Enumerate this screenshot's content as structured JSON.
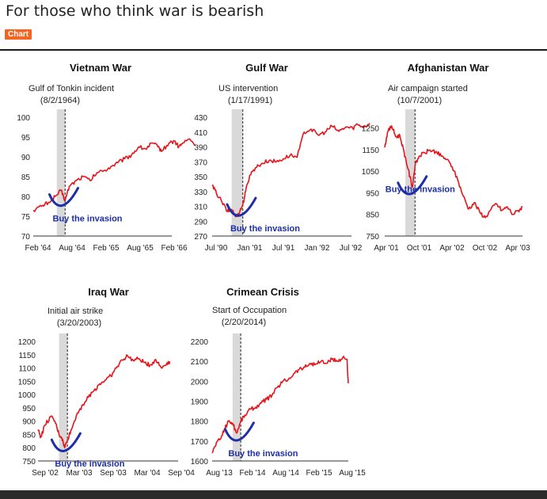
{
  "page": {
    "title": "For those who think war is bearish",
    "badge": "Chart"
  },
  "chart_data": [
    {
      "type": "line",
      "title": "Vietnam War",
      "event": "Gulf of Tonkin incident",
      "event_date": "(8/2/1964)",
      "annotation": "Buy the invasion",
      "y_ticks": [
        100,
        95,
        90,
        85,
        80,
        75,
        70
      ],
      "ylim": [
        70,
        100
      ],
      "x_ticks": [
        "Feb '64",
        "Aug '64",
        "Feb '65",
        "Aug '65",
        "Feb '66"
      ],
      "event_x": 1.15,
      "shade": [
        0.85,
        1.15
      ],
      "dip": [
        1.1,
        78.5
      ],
      "series": [
        [
          0,
          76.5
        ],
        [
          0.3,
          77.5
        ],
        [
          0.55,
          78.5
        ],
        [
          0.8,
          80
        ],
        [
          1.0,
          81.5
        ],
        [
          1.15,
          79
        ],
        [
          1.3,
          82.5
        ],
        [
          1.55,
          84
        ],
        [
          1.8,
          85
        ],
        [
          2.05,
          84
        ],
        [
          2.3,
          86
        ],
        [
          2.55,
          86.5
        ],
        [
          2.8,
          87.5
        ],
        [
          3.05,
          88.5
        ],
        [
          3.3,
          89.5
        ],
        [
          3.55,
          90.5
        ],
        [
          3.8,
          92.5
        ],
        [
          4.05,
          92
        ],
        [
          4.3,
          93.5
        ],
        [
          4.5,
          92.5
        ],
        [
          4.65,
          91.5
        ],
        [
          4.9,
          93.5
        ],
        [
          5.1,
          94
        ],
        [
          5.25,
          92.5
        ],
        [
          5.4,
          93.5
        ],
        [
          5.65,
          94.5
        ],
        [
          5.85,
          93
        ]
      ]
    },
    {
      "type": "line",
      "title": "Gulf War",
      "event": "US intervention",
      "event_date": "(1/17/1991)",
      "annotation": "Buy the invasion",
      "y_ticks": [
        430,
        410,
        390,
        370,
        350,
        330,
        310,
        290,
        270
      ],
      "ylim": [
        270,
        430
      ],
      "x_ticks": [
        "Jul '90",
        "Jan '91",
        "Jul '91",
        "Jan '92",
        "Jul '92"
      ],
      "event_x": 1.1,
      "shade": [
        0.7,
        1.1
      ],
      "dip": [
        1.05,
        302
      ],
      "series": [
        [
          0,
          338
        ],
        [
          0.15,
          328
        ],
        [
          0.35,
          316
        ],
        [
          0.55,
          303
        ],
        [
          0.7,
          306
        ],
        [
          0.85,
          296
        ],
        [
          1.0,
          304
        ],
        [
          1.1,
          312
        ],
        [
          1.2,
          330
        ],
        [
          1.35,
          352
        ],
        [
          1.55,
          362
        ],
        [
          1.8,
          368
        ],
        [
          2.05,
          372
        ],
        [
          2.3,
          370
        ],
        [
          2.55,
          374
        ],
        [
          2.8,
          379
        ],
        [
          3.05,
          376
        ],
        [
          3.3,
          410
        ],
        [
          3.55,
          414
        ],
        [
          3.8,
          406
        ],
        [
          4.05,
          410
        ],
        [
          4.3,
          418
        ],
        [
          4.55,
          411
        ],
        [
          4.8,
          417
        ],
        [
          5.05,
          415
        ],
        [
          5.2,
          421
        ],
        [
          5.45,
          417
        ],
        [
          5.65,
          422
        ]
      ]
    },
    {
      "type": "line",
      "title": "Afghanistan War",
      "event": "Air campaign started",
      "event_date": "(10/7/2001)",
      "annotation": "Buy the invasion",
      "y_ticks": [
        1250,
        1150,
        1050,
        950,
        850,
        750
      ],
      "ylim": [
        750,
        1300
      ],
      "x_ticks": [
        "Apr '01",
        "Oct '01",
        "Apr '02",
        "Oct '02",
        "Apr '03"
      ],
      "event_x": 1.1,
      "shade": [
        0.75,
        1.1
      ],
      "dip": [
        1.0,
        960
      ],
      "series": [
        [
          0,
          1160
        ],
        [
          0.1,
          1230
        ],
        [
          0.25,
          1260
        ],
        [
          0.4,
          1210
        ],
        [
          0.55,
          1215
        ],
        [
          0.7,
          1140
        ],
        [
          0.85,
          1060
        ],
        [
          1.0,
          975
        ],
        [
          1.1,
          1075
        ],
        [
          1.25,
          1120
        ],
        [
          1.45,
          1135
        ],
        [
          1.65,
          1148
        ],
        [
          1.85,
          1140
        ],
        [
          2.05,
          1120
        ],
        [
          2.25,
          1105
        ],
        [
          2.45,
          1070
        ],
        [
          2.65,
          1010
        ],
        [
          2.85,
          935
        ],
        [
          3.05,
          875
        ],
        [
          3.25,
          905
        ],
        [
          3.45,
          860
        ],
        [
          3.65,
          835
        ],
        [
          3.85,
          872
        ],
        [
          4.05,
          900
        ],
        [
          4.25,
          868
        ],
        [
          4.45,
          885
        ],
        [
          4.65,
          850
        ],
        [
          4.85,
          868
        ],
        [
          5.0,
          885
        ]
      ]
    },
    {
      "type": "line",
      "title": "Iraq War",
      "event": "Initial air strike",
      "event_date": "(3/20/2003)",
      "annotation": "Buy the invasion",
      "y_ticks": [
        1200,
        1150,
        1100,
        1050,
        1000,
        950,
        900,
        850,
        800,
        750
      ],
      "ylim": [
        750,
        1200
      ],
      "x_ticks": [
        "Sep '02",
        "Mar '03",
        "Sep '03",
        "Mar '04",
        "Sep '04"
      ],
      "event_x": 1.05,
      "shade": [
        0.75,
        1.05
      ],
      "dip": [
        1.0,
        800
      ],
      "series": [
        [
          0,
          868
        ],
        [
          0.1,
          840
        ],
        [
          0.25,
          885
        ],
        [
          0.45,
          916
        ],
        [
          0.6,
          900
        ],
        [
          0.75,
          850
        ],
        [
          0.85,
          838
        ],
        [
          0.95,
          800
        ],
        [
          1.05,
          830
        ],
        [
          1.2,
          870
        ],
        [
          1.4,
          930
        ],
        [
          1.6,
          962
        ],
        [
          1.8,
          990
        ],
        [
          2.0,
          1015
        ],
        [
          2.2,
          1040
        ],
        [
          2.4,
          1055
        ],
        [
          2.6,
          1070
        ],
        [
          2.8,
          1100
        ],
        [
          3.0,
          1130
        ],
        [
          3.2,
          1145
        ],
        [
          3.4,
          1128
        ],
        [
          3.6,
          1135
        ],
        [
          3.8,
          1120
        ],
        [
          4.0,
          1110
        ],
        [
          4.2,
          1132
        ],
        [
          4.4,
          1100
        ],
        [
          4.6,
          1118
        ],
        [
          4.7,
          1125
        ]
      ]
    },
    {
      "type": "line",
      "title": "Crimean Crisis",
      "event": "Start of Occupation",
      "event_date": "(2/20/2014)",
      "annotation": "Buy the invasion",
      "y_ticks": [
        2200,
        2100,
        2000,
        1900,
        1800,
        1700,
        1600
      ],
      "ylim": [
        1600,
        2200
      ],
      "x_ticks": [
        "Aug '13",
        "Feb '14",
        "Aug '14",
        "Feb '15",
        "Aug '15"
      ],
      "event_x": 1.05,
      "shade": [
        0.75,
        1.05
      ],
      "dip": [
        1.0,
        1720
      ],
      "series": [
        [
          0,
          1640
        ],
        [
          0.15,
          1690
        ],
        [
          0.3,
          1710
        ],
        [
          0.45,
          1760
        ],
        [
          0.6,
          1800
        ],
        [
          0.75,
          1790
        ],
        [
          0.9,
          1740
        ],
        [
          1.05,
          1800
        ],
        [
          1.2,
          1830
        ],
        [
          1.4,
          1860
        ],
        [
          1.6,
          1870
        ],
        [
          1.8,
          1890
        ],
        [
          2.0,
          1910
        ],
        [
          2.2,
          1930
        ],
        [
          2.4,
          1970
        ],
        [
          2.6,
          2000
        ],
        [
          2.8,
          2010
        ],
        [
          3.0,
          2040
        ],
        [
          3.2,
          2060
        ],
        [
          3.4,
          2070
        ],
        [
          3.6,
          2090
        ],
        [
          3.8,
          2085
        ],
        [
          4.0,
          2100
        ],
        [
          4.2,
          2090
        ],
        [
          4.4,
          2110
        ],
        [
          4.6,
          2100
        ],
        [
          4.8,
          2120
        ],
        [
          4.95,
          2110
        ],
        [
          5.0,
          1990
        ]
      ]
    }
  ]
}
